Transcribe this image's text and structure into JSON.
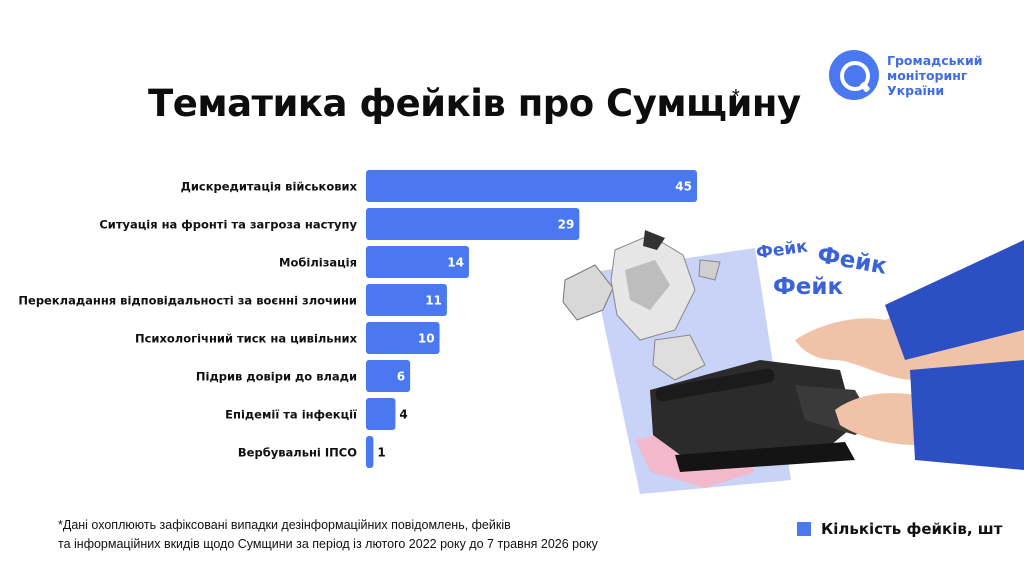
{
  "title": "Тематика фейків про Сумщину",
  "title_mark": "*",
  "logo": {
    "line1": "Громадський",
    "line2": "моніторинг",
    "line3": "України"
  },
  "chart_data": {
    "type": "bar",
    "orientation": "horizontal",
    "categories": [
      "Дискредитація військових",
      "Ситуація на фронті та загроза наступу",
      "Мобілізація",
      "Перекладання відповідальності за воєнні злочини",
      "Психологічний тиск на цивільних",
      "Підрив довіри до влади",
      "Епідемії та інфекції",
      "Вербувальні ІПСО"
    ],
    "series": [
      {
        "name": "Кількість фейків, шт",
        "values": [
          45,
          29,
          14,
          11,
          10,
          6,
          4,
          1
        ]
      }
    ],
    "xlim": [
      0,
      45
    ],
    "grid": false,
    "legend_position": "bottom-right",
    "bar_color": "#4a78f0"
  },
  "footnote": {
    "line1": "*Дані охоплюють зафіксовані випадки дезінформаційних повідомлень, фейків",
    "line2": "та інформаційних вкидів щодо Сумщини за період із лютого 2022 року до 7 травня 2026 року"
  },
  "legend": {
    "label": "Кількість фейків, шт"
  },
  "collage": {
    "words": [
      "Фейк",
      "Фейк",
      "Фейк"
    ]
  }
}
